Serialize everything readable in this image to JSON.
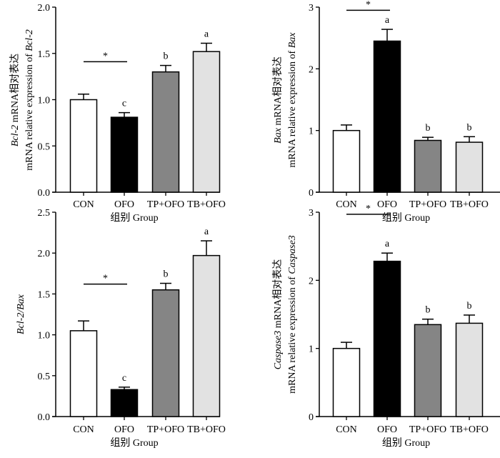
{
  "chart_data": [
    {
      "type": "bar",
      "ylabel_lines": [
        [
          {
            "text": "Bcl-2",
            "italic": true
          },
          {
            "text": " mRNA相对表达"
          }
        ],
        [
          {
            "text": "mRNA relative expression of "
          },
          {
            "text": "Bcl-2",
            "italic": true
          }
        ]
      ],
      "xlabel": "组别 Group",
      "categories": [
        "CON",
        "OFO",
        "TP+OFO",
        "TB+OFO"
      ],
      "values": [
        1.0,
        0.81,
        1.3,
        1.52
      ],
      "errors": [
        0.06,
        0.05,
        0.07,
        0.09
      ],
      "letters": [
        "",
        "c",
        "b",
        "a"
      ],
      "significance": {
        "from": 0,
        "to": 1,
        "label": "*",
        "y": 1.41
      },
      "ylim": [
        0,
        2.0
      ],
      "yticks": [
        "0.0",
        "0.5",
        "1.0",
        "1.5",
        "2.0"
      ],
      "ytick_values": [
        0,
        0.5,
        1.0,
        1.5,
        2.0
      ],
      "colors": [
        "#ffffff",
        "#000000",
        "#858585",
        "#e2e2e2"
      ]
    },
    {
      "type": "bar",
      "ylabel_lines": [
        [
          {
            "text": "Bax",
            "italic": true
          },
          {
            "text": " mRNA相对表达"
          }
        ],
        [
          {
            "text": "mRNA relative expression of "
          },
          {
            "text": "Bax",
            "italic": true
          }
        ]
      ],
      "xlabel": "组别 Group",
      "categories": [
        "CON",
        "OFO",
        "TP+OFO",
        "TB+OFO"
      ],
      "values": [
        1.0,
        2.45,
        0.84,
        0.81
      ],
      "errors": [
        0.09,
        0.19,
        0.05,
        0.09
      ],
      "letters": [
        "",
        "a",
        "b",
        "b"
      ],
      "significance": {
        "from": 0,
        "to": 1,
        "label": "*",
        "y": 2.95
      },
      "ylim": [
        0,
        3
      ],
      "yticks": [
        "0",
        "1",
        "2",
        "3"
      ],
      "ytick_values": [
        0,
        1,
        2,
        3
      ],
      "colors": [
        "#ffffff",
        "#000000",
        "#858585",
        "#e2e2e2"
      ]
    },
    {
      "type": "bar",
      "ylabel_lines": [
        [
          {
            "text": "Bcl-2/Bax",
            "italic": true
          }
        ]
      ],
      "xlabel": "组别 Group",
      "categories": [
        "CON",
        "OFO",
        "TP+OFO",
        "TB+OFO"
      ],
      "values": [
        1.05,
        0.33,
        1.55,
        1.97
      ],
      "errors": [
        0.12,
        0.03,
        0.08,
        0.18
      ],
      "letters": [
        "",
        "c",
        "b",
        "a"
      ],
      "significance": {
        "from": 0,
        "to": 1,
        "label": "*",
        "y": 1.62
      },
      "ylim": [
        0,
        2.5
      ],
      "yticks": [
        "0.0",
        "0.5",
        "1.0",
        "1.5",
        "2.0",
        "2.5"
      ],
      "ytick_values": [
        0,
        0.5,
        1.0,
        1.5,
        2.0,
        2.5
      ],
      "colors": [
        "#ffffff",
        "#000000",
        "#858585",
        "#e2e2e2"
      ]
    },
    {
      "type": "bar",
      "ylabel_lines": [
        [
          {
            "text": "Caspase3",
            "italic": true
          },
          {
            "text": " mRNA相对表达"
          }
        ],
        [
          {
            "text": "mRNA relative expression of "
          },
          {
            "text": "Caspase3",
            "italic": true
          }
        ]
      ],
      "xlabel": "组别 Group",
      "categories": [
        "CON",
        "OFO",
        "TP+OFO",
        "TB+OFO"
      ],
      "values": [
        1.0,
        2.28,
        1.35,
        1.37
      ],
      "errors": [
        0.09,
        0.12,
        0.08,
        0.12
      ],
      "letters": [
        "",
        "a",
        "b",
        "b"
      ],
      "significance": {
        "from": 0,
        "to": 1,
        "label": "*",
        "y": 2.97
      },
      "ylim": [
        0,
        3
      ],
      "yticks": [
        "0",
        "1",
        "2",
        "3"
      ],
      "ytick_values": [
        0,
        1,
        2,
        3
      ],
      "colors": [
        "#ffffff",
        "#000000",
        "#858585",
        "#e2e2e2"
      ]
    }
  ]
}
